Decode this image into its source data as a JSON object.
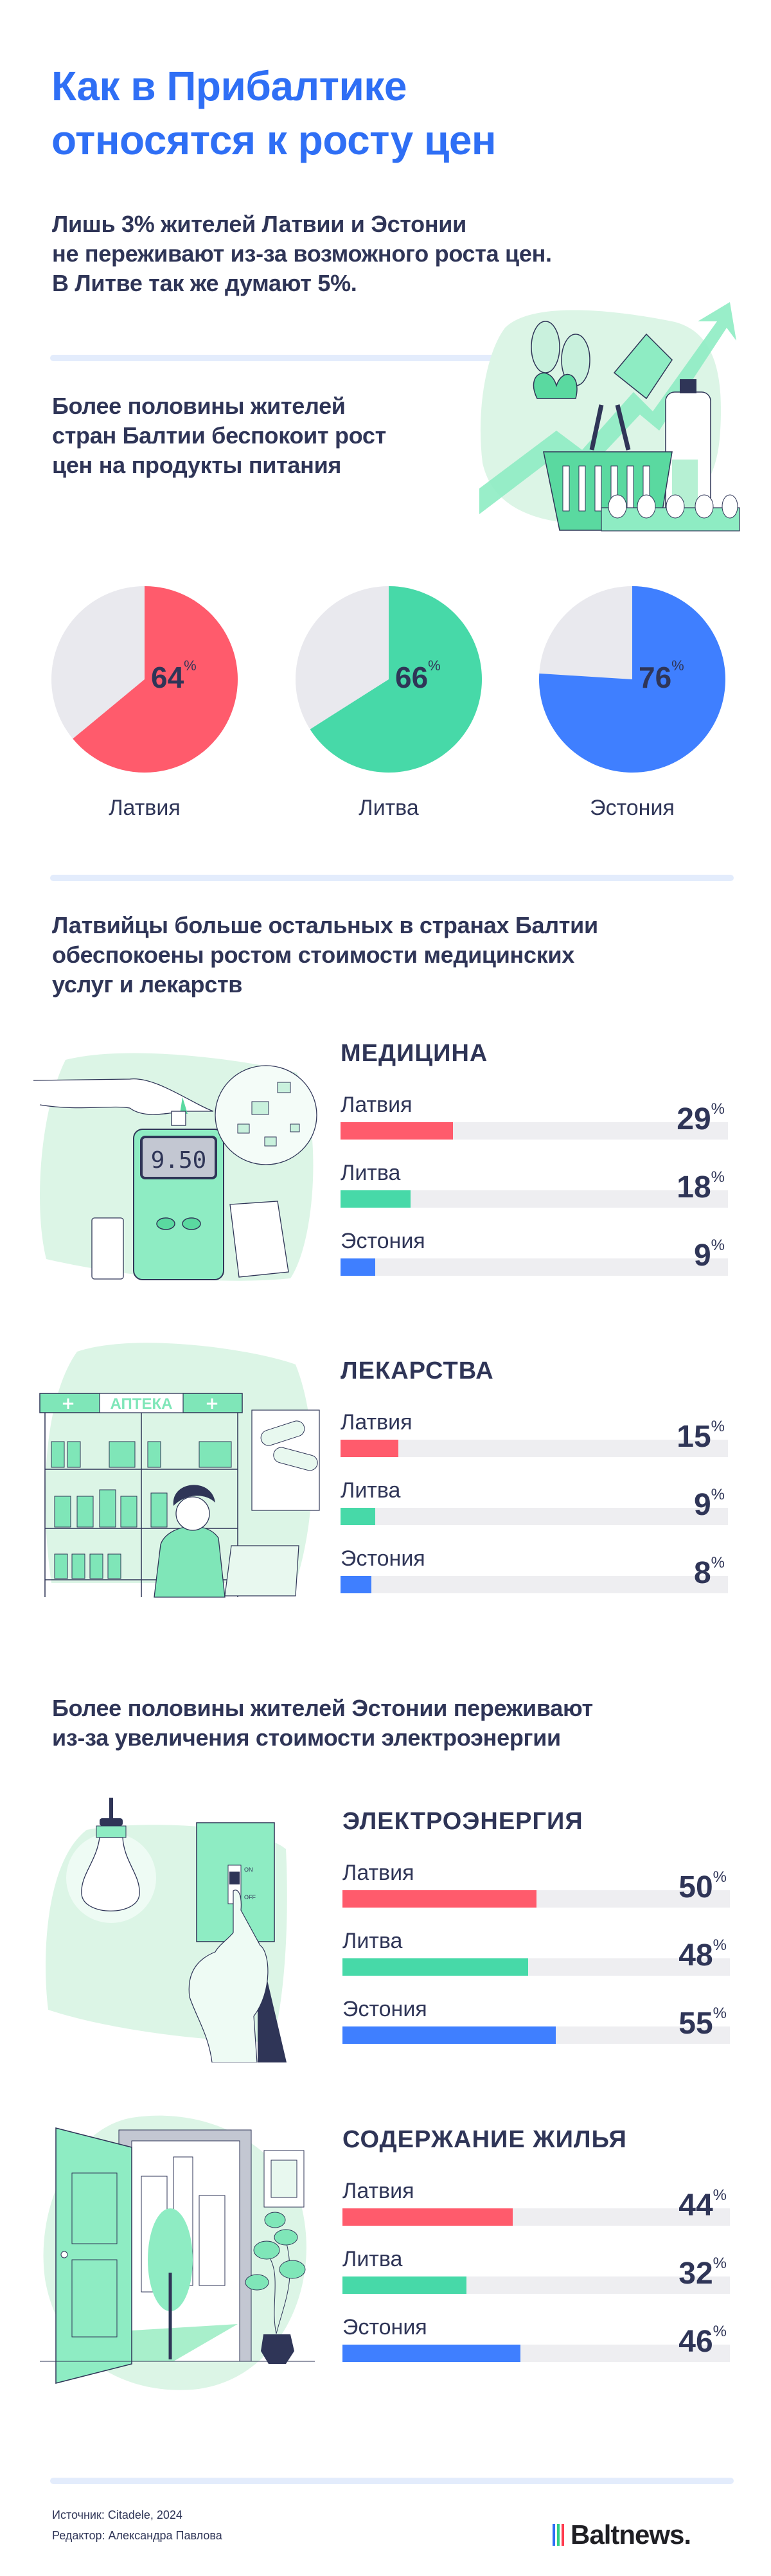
{
  "title": [
    "Как в Прибалтике",
    "относятся к росту цен"
  ],
  "intro": [
    "Лишь 3% жителей Латвии и Эстонии",
    "не переживают из-за возможного роста цен.",
    "В Литве так же думают 5%."
  ],
  "food_text": [
    "Более половины жителей",
    "стран Балтии беспокоит рост",
    "цен на продукты питания"
  ],
  "medical_text": [
    "Латвийцы больше остальных в странах Балтии",
    "обеспокоены ростом стоимости медицинских",
    "услуг и лекарств"
  ],
  "energy_text": [
    "Более половины жителей Эстонии переживают",
    "из-за увеличения стоимости электроэнергии"
  ],
  "percent_sign": "%",
  "colors": {
    "latvia": "#ff5b6c",
    "lithuania": "#47d9a8",
    "estonia": "#3f7fff",
    "track": "#eeeef1",
    "pie_rest": "#e9e9ee",
    "title": "#2f6ff5",
    "text": "#2f3557"
  },
  "illustrations": {
    "glucometer_display": "9.50",
    "pharmacy_sign": "АПТЕКА",
    "switch_on": "ON",
    "switch_off": "OFF"
  },
  "chart_data": [
    {
      "type": "pie",
      "title": "",
      "unit": "%",
      "categories": [
        "Латвия",
        "Литва",
        "Эстония"
      ],
      "values": [
        64,
        66,
        76
      ],
      "labels": [
        "64",
        "66",
        "76"
      ]
    },
    {
      "type": "bar",
      "title": "МЕДИЦИНА",
      "unit": "%",
      "xlim": [
        0,
        100
      ],
      "categories": [
        "Латвия",
        "Литва",
        "Эстония"
      ],
      "values": [
        29,
        18,
        9
      ],
      "labels": [
        "29",
        "18",
        "9"
      ]
    },
    {
      "type": "bar",
      "title": "ЛЕКАРСТВА",
      "unit": "%",
      "xlim": [
        0,
        100
      ],
      "categories": [
        "Латвия",
        "Литва",
        "Эстония"
      ],
      "values": [
        15,
        9,
        8
      ],
      "labels": [
        "15",
        "9",
        "8"
      ]
    },
    {
      "type": "bar",
      "title": "ЭЛЕКТРОЭНЕРГИЯ",
      "unit": "%",
      "xlim": [
        0,
        100
      ],
      "categories": [
        "Латвия",
        "Литва",
        "Эстония"
      ],
      "values": [
        50,
        48,
        55
      ],
      "labels": [
        "50",
        "48",
        "55"
      ]
    },
    {
      "type": "bar",
      "title": "СОДЕРЖАНИЕ ЖИЛЬЯ",
      "unit": "%",
      "xlim": [
        0,
        100
      ],
      "categories": [
        "Латвия",
        "Литва",
        "Эстония"
      ],
      "values": [
        44,
        32,
        46
      ],
      "labels": [
        "44",
        "32",
        "46"
      ]
    }
  ],
  "footer": {
    "source": "Источник: Citadele, 2024",
    "editor": "Редактор: Александра Павлова",
    "logo": "Baltnews."
  }
}
